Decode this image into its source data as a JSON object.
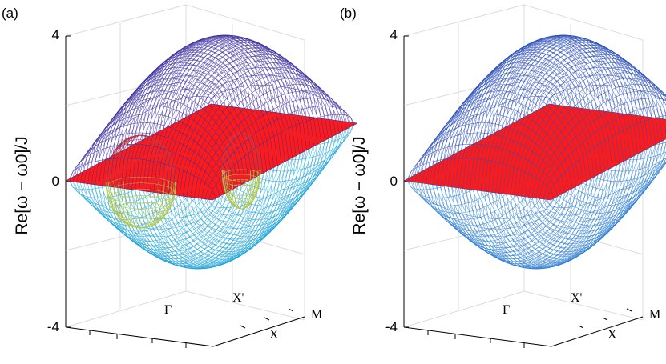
{
  "chart_data": [
    {
      "type": "surface",
      "panel_label": "(a)",
      "ylabel": "Re[ω − ω0]/J",
      "zlim": [
        -4,
        4
      ],
      "z_ticks": [
        "4",
        "0",
        "-4"
      ],
      "axis_labels": {
        "gamma": "Γ",
        "x": "X",
        "x_prime": "X'",
        "m": "M"
      },
      "surfaces": [
        {
          "role": "upper band",
          "color": "#3b2f9e",
          "extremes": {
            "Γ": 3.3,
            "X": 2.0,
            "X'": 2.0,
            "M": 0.0
          }
        },
        {
          "role": "flat band",
          "color": "#ff1a1a",
          "value": 0
        },
        {
          "role": "lower band",
          "color": "#1fa3d6",
          "extremes": {
            "Γ": -3.3,
            "X": -2.0,
            "X'": -2.0,
            "M": 0.0
          }
        },
        {
          "role": "bubble upper half",
          "color": "#e03030"
        },
        {
          "role": "bubble lower half",
          "color": "#b5c94a"
        }
      ],
      "grid": true
    },
    {
      "type": "surface",
      "panel_label": "(b)",
      "ylabel": "Re[ω − ω0]/J",
      "zlim": [
        -4,
        4
      ],
      "z_ticks": [
        "4",
        "0",
        "-4"
      ],
      "axis_labels": {
        "gamma": "Γ",
        "x": "X",
        "x_prime": "X'",
        "m": "M"
      },
      "surfaces": [
        {
          "role": "upper band",
          "color": "#2b4fb8",
          "extremes": {
            "Γ": 3.3,
            "X": 2.0,
            "X'": 2.0,
            "M": 0.0
          }
        },
        {
          "role": "flat band",
          "color": "#ff1a1a",
          "value": 0
        },
        {
          "role": "lower band",
          "color": "#2f7fd0",
          "extremes": {
            "Γ": -3.3,
            "X": -2.0,
            "X'": -2.0,
            "M": 0.0
          }
        }
      ],
      "grid": true
    }
  ]
}
